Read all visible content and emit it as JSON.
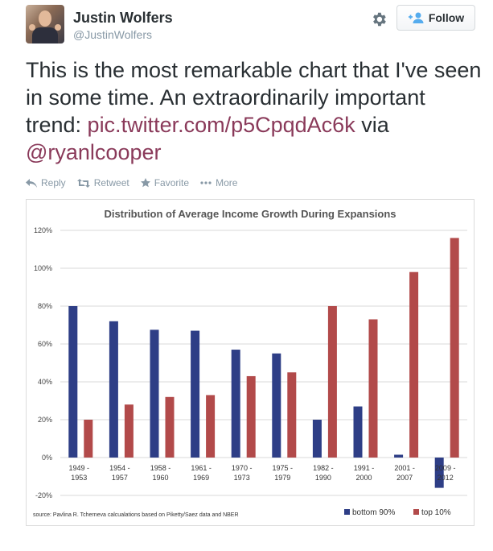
{
  "tweet": {
    "author_name": "Justin Wolfers",
    "author_handle": "@JustinWolfers",
    "follow_label": "Follow",
    "text_main": "This is the most remarkable chart that I've seen in some time. An extraordinarily important trend: ",
    "link_text": "pic.twitter.com/p5CpqdAc6k",
    "via_text": " via ",
    "mention": "@ryanlcooper",
    "link_color": "#8a3a5a"
  },
  "actions": {
    "reply": "Reply",
    "retweet": "Retweet",
    "favorite": "Favorite",
    "more": "More"
  },
  "chart_data": {
    "type": "bar",
    "title": "Distribution of Average Income Growth During Expansions",
    "categories": [
      "1949 - 1953",
      "1954 - 1957",
      "1958 - 1960",
      "1961 - 1969",
      "1970 - 1973",
      "1975 - 1979",
      "1982 - 1990",
      "1991 - 2000",
      "2001 - 2007",
      "2009 - 2012"
    ],
    "category_lines": [
      [
        "1949 -",
        "1953"
      ],
      [
        "1954 -",
        "1957"
      ],
      [
        "1958 -",
        "1960"
      ],
      [
        "1961 -",
        "1969"
      ],
      [
        "1970 -",
        "1973"
      ],
      [
        "1975 -",
        "1979"
      ],
      [
        "1982 -",
        "1990"
      ],
      [
        "1991 -",
        "2000"
      ],
      [
        "2001 -",
        "2007"
      ],
      [
        "2009 -",
        "2012"
      ]
    ],
    "series": [
      {
        "name": "bottom 90%",
        "color": "#2e3e86",
        "values": [
          80,
          72,
          67.5,
          67,
          57,
          55,
          20,
          27,
          1.5,
          -16
        ]
      },
      {
        "name": "top 10%",
        "color": "#b24a4a",
        "values": [
          20,
          28,
          32,
          33,
          43,
          45,
          80,
          73,
          98,
          116
        ]
      }
    ],
    "ylim": [
      -20,
      120
    ],
    "yticks": [
      -20,
      0,
      20,
      40,
      60,
      80,
      100,
      120
    ],
    "ytick_labels": [
      "-20%",
      "0%",
      "20%",
      "40%",
      "60%",
      "80%",
      "100%",
      "120%"
    ],
    "grid": true,
    "legend_position": "bottom-right",
    "source": "source: Pavlina R. Tcherneva calcualations based on Piketty/Saez data and NBER"
  }
}
